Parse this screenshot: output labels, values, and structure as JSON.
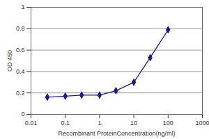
{
  "chart_data": {
    "type": "line",
    "x": [
      0.03,
      0.1,
      0.3,
      1,
      3,
      10,
      30,
      100
    ],
    "values": [
      0.16,
      0.17,
      0.18,
      0.18,
      0.22,
      0.3,
      0.53,
      0.79
    ],
    "xlabel": "Recombinant ProteinConcentration(ng/ml)",
    "ylabel": "OD 450",
    "xlim": [
      0.01,
      1000
    ],
    "xticks": [
      0.01,
      0.1,
      1,
      10,
      100,
      1000
    ],
    "ylim": [
      0,
      1
    ],
    "yticks": [
      0,
      0.2,
      0.4,
      0.6,
      0.8,
      1
    ],
    "log": "x",
    "grid": true,
    "color": "#1a1a8c",
    "marker": "diamond"
  }
}
